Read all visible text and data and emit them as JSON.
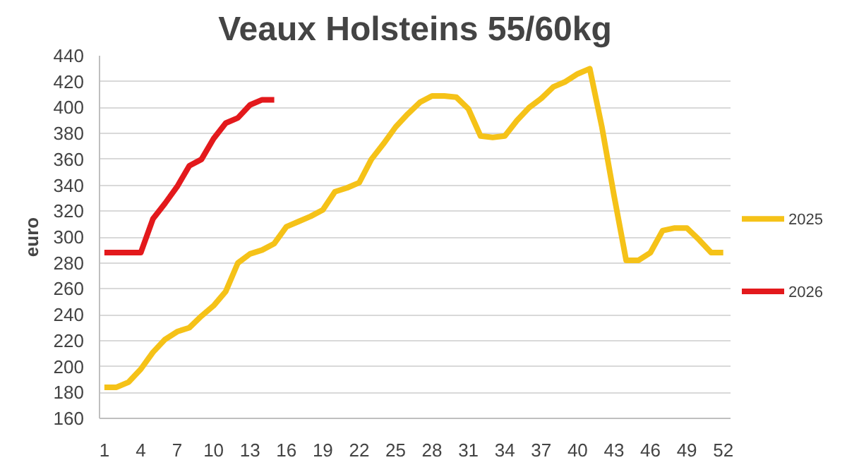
{
  "chart_data": {
    "type": "line",
    "title": "Veaux Holsteins 55/60kg",
    "ylabel": "euro",
    "x": [
      1,
      2,
      3,
      4,
      5,
      6,
      7,
      8,
      9,
      10,
      11,
      12,
      13,
      14,
      15,
      16,
      17,
      18,
      19,
      20,
      21,
      22,
      23,
      24,
      25,
      26,
      27,
      28,
      29,
      30,
      31,
      32,
      33,
      34,
      35,
      36,
      37,
      38,
      39,
      40,
      41,
      42,
      43,
      44,
      45,
      46,
      47,
      48,
      49,
      50,
      51,
      52
    ],
    "series": [
      {
        "name": "2025",
        "color": "#f5c218",
        "values": [
          184,
          184,
          188,
          198,
          211,
          221,
          227,
          230,
          239,
          247,
          258,
          280,
          287,
          290,
          295,
          308,
          312,
          316,
          321,
          335,
          338,
          342,
          360,
          372,
          385,
          395,
          404,
          409,
          409,
          408,
          399,
          378,
          377,
          378,
          390,
          400,
          407,
          416,
          420,
          426,
          430,
          385,
          332,
          282,
          282,
          288,
          305,
          307,
          307,
          298,
          288,
          288
        ]
      },
      {
        "name": "2026",
        "color": "#e3191c",
        "x": [
          1,
          2,
          3,
          4,
          5,
          6,
          7,
          8,
          9,
          10,
          11,
          12,
          13,
          14,
          15
        ],
        "values": [
          288,
          288,
          288,
          288,
          314,
          326,
          339,
          355,
          360,
          376,
          388,
          392,
          402,
          406,
          406
        ]
      }
    ],
    "xlim": [
      0.6,
      52.6
    ],
    "xticks": [
      1,
      4,
      7,
      10,
      13,
      16,
      19,
      22,
      25,
      28,
      31,
      34,
      37,
      40,
      43,
      46,
      49,
      52
    ],
    "ylim": [
      160,
      440
    ],
    "yticks": [
      160,
      180,
      200,
      220,
      240,
      260,
      280,
      300,
      320,
      340,
      360,
      380,
      400,
      420,
      440
    ],
    "grid": "y",
    "legend": "right",
    "marker": "none",
    "line_style": "solid"
  }
}
